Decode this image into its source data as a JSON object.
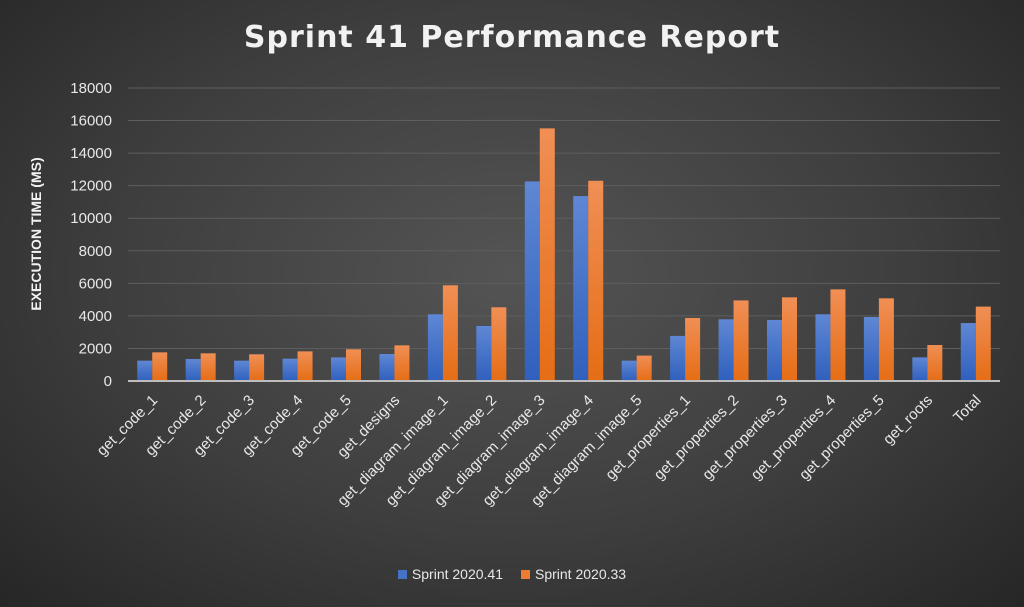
{
  "chart_data": {
    "type": "bar",
    "title": "Sprint 41 Performance Report",
    "xlabel": "",
    "ylabel": "EXECUTION TIME (MS)",
    "ylim": [
      0,
      18000
    ],
    "yticks": [
      "0",
      "2000",
      "4000",
      "6000",
      "8000",
      "10000",
      "12000",
      "14000",
      "16000",
      "18000"
    ],
    "grid": true,
    "legend_position": "bottom",
    "categories": [
      "get_code_1",
      "get_code_2",
      "get_code_3",
      "get_code_4",
      "get_code_5",
      "get_designs",
      "get_diagram_image_1",
      "get_diagram_image_2",
      "get_diagram_image_3",
      "get_diagram_image_4",
      "get_diagram_image_5",
      "get_properties_1",
      "get_properties_2",
      "get_properties_3",
      "get_properties_4",
      "get_properties_5",
      "get_roots",
      "Total"
    ],
    "series": [
      {
        "name": "Sprint 2020.41",
        "color": "#4472c4",
        "values": [
          1250,
          1350,
          1250,
          1370,
          1450,
          1660,
          4100,
          3380,
          12260,
          11360,
          1250,
          2770,
          3790,
          3750,
          4100,
          3930,
          1450,
          3560
        ]
      },
      {
        "name": "Sprint 2020.33",
        "color": "#ed7d31",
        "values": [
          1760,
          1700,
          1640,
          1820,
          1950,
          2190,
          5880,
          4530,
          15520,
          12300,
          1560,
          3870,
          4950,
          5140,
          5630,
          5080,
          2210,
          4570
        ]
      }
    ]
  }
}
